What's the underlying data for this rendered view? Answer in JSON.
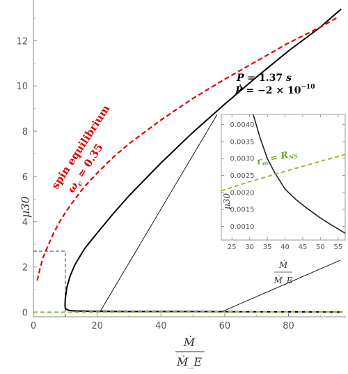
{
  "chart_data": [
    {
      "type": "line",
      "title": "",
      "xlabel_num": "Ṁ",
      "xlabel_den": "Ṁ_E",
      "ylabel": "μ30",
      "xlim": [
        0,
        98
      ],
      "ylim": [
        -0.2,
        13.8
      ],
      "x_ticks": [
        0,
        20,
        40,
        60,
        80
      ],
      "y_ticks": [
        0,
        2,
        4,
        6,
        8,
        10,
        12
      ],
      "series": [
        {
          "key": "main",
          "color": "#000000",
          "x": [
            96.5,
            90,
            80,
            70,
            60,
            50,
            40,
            30,
            25,
            20,
            16,
            13,
            11.5,
            10.5,
            10.0,
            9.9,
            10.0,
            10.5,
            11,
            12,
            13,
            15,
            18,
            21,
            30,
            50,
            70,
            97
          ],
          "y": [
            13.4,
            12.6,
            11.55,
            10.4,
            9.2,
            7.95,
            6.6,
            5.15,
            4.35,
            3.5,
            2.8,
            2.1,
            1.6,
            1.1,
            0.6,
            0.3,
            0.17,
            0.12,
            0.09,
            0.07,
            0.06,
            0.05,
            0.04,
            0.04,
            0.03,
            0.03,
            0.02,
            0.01
          ]
        },
        {
          "key": "spin",
          "name": "spin equilibrium",
          "color": "#e00000",
          "dashed": true,
          "x": [
            1.2,
            2,
            3,
            4,
            6,
            8,
            10,
            13,
            16,
            20,
            25,
            30,
            40,
            50,
            60,
            70,
            80,
            90,
            95
          ],
          "y": [
            1.4,
            1.9,
            2.4,
            2.75,
            3.4,
            3.95,
            4.4,
            5.0,
            5.55,
            6.15,
            6.85,
            7.45,
            8.5,
            9.45,
            10.3,
            11.1,
            11.9,
            12.6,
            13.0
          ]
        },
        {
          "key": "green",
          "color": "#8fbf3a",
          "dashed": true,
          "x": [
            0,
            97
          ],
          "y": [
            0.0,
            0.02
          ]
        }
      ],
      "annotations": {
        "spin_label": "spin equilibrium",
        "omega": "ω",
        "omega_sub": "c",
        "omega_val": " ≃  0.35",
        "period_lhs": "P",
        "period_eq": " =  1.37",
        "period_unit": " s",
        "pdot_lhs": "Ṗ",
        "pdot_eq": " = −2 × 10",
        "pdot_exp": "−10"
      },
      "guide": {
        "x": 10.0,
        "y": 2.7
      },
      "zoom_region": {
        "x": [
          21,
          59
        ],
        "y": [
          0,
          0.03
        ]
      }
    },
    {
      "type": "line",
      "inset": true,
      "xlabel_num": "Ṁ",
      "xlabel_den": "Ṁ_E",
      "ylabel": "μ30",
      "xlim": [
        22,
        57
      ],
      "ylim": [
        0.0006,
        0.0043
      ],
      "x_ticks": [
        25,
        30,
        35,
        40,
        45,
        50,
        55
      ],
      "y_ticks": [
        "0.0010",
        "0.0015",
        "0.0020",
        "0.0025",
        "0.0030",
        "0.0035",
        "0.0040"
      ],
      "series": [
        {
          "key": "main",
          "color": "#222222",
          "x": [
            31,
            33,
            35,
            37,
            40,
            43,
            46,
            50,
            53,
            57
          ],
          "y": [
            0.0043,
            0.0036,
            0.003,
            0.0026,
            0.0021,
            0.0018,
            0.00155,
            0.00125,
            0.00105,
            0.0008
          ]
        },
        {
          "key": "green",
          "color": "#8fbf3a",
          "dashed": true,
          "x": [
            22,
            30,
            40,
            50,
            57
          ],
          "y": [
            0.00205,
            0.00232,
            0.00262,
            0.00292,
            0.00312
          ]
        }
      ],
      "annotation": {
        "lhs": "r",
        "lhs_sub": "m",
        "eq": " = R",
        "rhs_sub": "NS"
      }
    }
  ]
}
